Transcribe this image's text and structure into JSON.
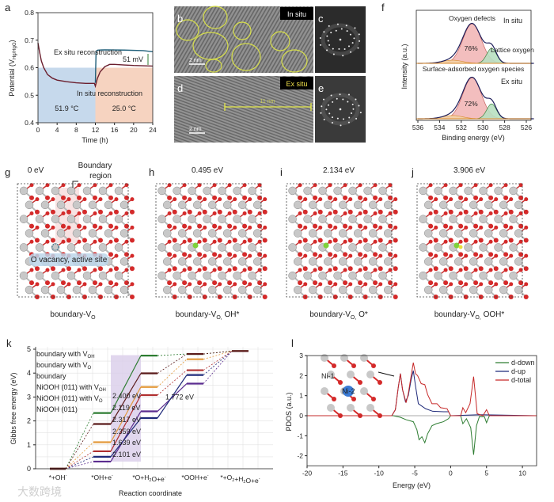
{
  "panel_labels": {
    "a": "a",
    "b": "b",
    "c": "c",
    "d": "d",
    "e": "e",
    "f": "f",
    "g": "g",
    "h": "h",
    "i": "i",
    "j": "j",
    "k": "k",
    "l": "l"
  },
  "tem": {
    "in_situ": "In situ",
    "ex_situ": "Ex situ",
    "scale_b": "2 nm",
    "scale_d": "2 nm",
    "measure_d": "11 nm"
  },
  "structures": [
    {
      "energy": "0 eV",
      "caption_main": "boundary-V",
      "caption_sub": "O",
      "caption_suffix": "",
      "boundary_label_1": "Boundary",
      "boundary_label_2": "region",
      "vacancy_label": "O vacancy, active site"
    },
    {
      "energy": "0.495 eV",
      "caption_main": "boundary-V",
      "caption_sub": "O,",
      "caption_suffix": " OH*"
    },
    {
      "energy": "2.134 eV",
      "caption_main": "boundary-V",
      "caption_sub": "O,",
      "caption_suffix": " O*"
    },
    {
      "energy": "3.906 eV",
      "caption_main": "boundary-V",
      "caption_sub": "O,",
      "caption_suffix": " OOH*"
    }
  ],
  "inset_labels": {
    "ni1": "Ni-1",
    "ni2": "Ni-2"
  },
  "watermark": "大数跨境",
  "chart_data": [
    {
      "id": "a",
      "type": "line",
      "xlabel": "Time (h)",
      "ylabel_main": "Potential (V",
      "ylabel_sub": "Hg/HgO",
      "ylabel_end": ")",
      "xlim": [
        0,
        24
      ],
      "ylim": [
        0.4,
        0.8
      ],
      "xticks": [
        "0",
        "4",
        "8",
        "12",
        "16",
        "20",
        "24"
      ],
      "yticks": [
        "0.4",
        "0.5",
        "0.6",
        "0.7",
        "0.8"
      ],
      "regions": [
        {
          "x": [
            0,
            12
          ],
          "y": [
            0.4,
            0.6
          ],
          "label": "51.9 °C",
          "color": "#c6d9ec"
        },
        {
          "x": [
            12,
            24
          ],
          "y": [
            0.4,
            0.6
          ],
          "label": "25.0 °C",
          "color": "#f6d3c0"
        }
      ],
      "series": [
        {
          "name": "In situ reconstruction",
          "color": "#6b1f2e",
          "x": [
            0,
            0.3,
            0.7,
            1.2,
            2,
            3,
            4,
            6,
            8,
            10,
            11.8,
            12,
            12.4,
            13,
            14,
            15,
            16,
            18,
            20,
            24
          ],
          "y": [
            0.69,
            0.66,
            0.625,
            0.6,
            0.575,
            0.562,
            0.555,
            0.549,
            0.545,
            0.543,
            0.543,
            0.533,
            0.56,
            0.585,
            0.604,
            0.612,
            0.612,
            0.61,
            0.608,
            0.606
          ]
        },
        {
          "name": "Ex situ reconstruction",
          "color": "#1f5f7a",
          "x": [
            12,
            12.15,
            12.5,
            14,
            18,
            22,
            24
          ],
          "y": [
            0.545,
            0.66,
            0.664,
            0.665,
            0.664,
            0.662,
            0.658
          ]
        }
      ],
      "annotation": "51 mV"
    },
    {
      "id": "f",
      "type": "area",
      "xlabel": "Binding energy (eV)",
      "ylabel": "Intensity (a.u.)",
      "xlim": [
        536,
        525
      ],
      "xticks": [
        "536",
        "534",
        "532",
        "530",
        "528",
        "526"
      ],
      "spectra": [
        {
          "name": "In situ",
          "defect_percent": "76%"
        },
        {
          "name": "Ex situ",
          "defect_percent": "72%"
        }
      ],
      "components": [
        {
          "name": "Oxygen defects",
          "center": 531.0,
          "sigma": 0.85,
          "color": "#f2b8b8",
          "line": "#c0504d"
        },
        {
          "name": "Lattice oxygen",
          "center": 529.2,
          "sigma": 0.45,
          "color": "#b9e0c2",
          "line": "#2e7d32"
        },
        {
          "name": "Surface-adsorbed oxygen species",
          "center": 532.8,
          "sigma": 0.9,
          "color": "#f3d2a8",
          "line": "#d98a2b"
        }
      ],
      "amplitudes": [
        [
          1.0,
          0.38,
          0.08
        ],
        [
          1.0,
          0.36,
          0.08
        ]
      ]
    },
    {
      "id": "k",
      "type": "line",
      "xlabel": "Reaction coordinate",
      "ylabel": "Gibbs free energy (eV)",
      "ylim": [
        0,
        5
      ],
      "yticks": [
        "0",
        "1",
        "2",
        "3",
        "4",
        "5"
      ],
      "categories": [
        {
          "main": "*+OH",
          "sup": "-",
          "rest": ""
        },
        {
          "main": "*OH+e",
          "sup": "-",
          "rest": ""
        },
        {
          "main": "*O+H",
          "sub": "2",
          "mid": "O+e",
          "sup": "-"
        },
        {
          "main": "*OOH+e",
          "sup": "-",
          "rest": ""
        },
        {
          "main": "*+O",
          "sub": "2",
          "mid": "+H",
          "sub2": "2",
          "mid2": "O+e",
          "sup": "-"
        }
      ],
      "series": [
        {
          "main": "boundary with V",
          "sub": "OH",
          "color": "#5b2c8f",
          "values": [
            0,
            0.3,
            2.4,
            3.56,
            4.92
          ]
        },
        {
          "main": "boundary with V",
          "sub": "O",
          "color": "#1f2a7a",
          "values": [
            0,
            0.5,
            2.12,
            3.92,
            4.92
          ]
        },
        {
          "main": "boundary",
          "sub": "",
          "color": "#2e7d32",
          "values": [
            0,
            2.33,
            4.73,
            4.8,
            4.92
          ]
        },
        {
          "main": "NiOOH (011) with V",
          "sub": "OH",
          "color": "#e39a3c",
          "values": [
            0,
            1.11,
            3.42,
            4.58,
            4.92
          ]
        },
        {
          "main": "NiOOH (011) with V",
          "sub": "O",
          "color": "#b03030",
          "values": [
            0,
            0.73,
            3.08,
            4.12,
            4.92
          ]
        },
        {
          "main": "NiOOH (011)",
          "sub": "",
          "color": "#5a1a1a",
          "values": [
            0,
            1.87,
            3.99,
            4.8,
            4.92
          ]
        }
      ],
      "barriers": [
        "2.400 eV",
        "2.119 eV",
        "2.317 eV",
        "2.359 eV",
        "1.639 eV",
        "2.101 eV"
      ],
      "barrier_colors": [
        "#2e7d32",
        "#5a1a1a",
        "#e39a3c",
        "#b03030",
        "#1f2a7a",
        "#5b2c8f"
      ],
      "ooh_barrier": "1.772 eV"
    },
    {
      "id": "l",
      "type": "line",
      "xlabel": "Energy (eV)",
      "ylabel": "PDOS (a.u.)",
      "xlim": [
        -20,
        12
      ],
      "ylim": [
        -2.5,
        3
      ],
      "xticks": [
        "-20",
        "-15",
        "-10",
        "-5",
        "0",
        "5",
        "10"
      ],
      "yticks": [
        "-2",
        "-1",
        "0",
        "1",
        "2",
        "3"
      ],
      "series": [
        {
          "name": "d-down",
          "color": "#2e7d32",
          "x": [
            -20,
            -8,
            -7,
            -6.2,
            -5.2,
            -4.7,
            -4.4,
            -4.0,
            -3.6,
            -3.2,
            -2.6,
            -2,
            -1,
            -0.3,
            0,
            1.4,
            1.7,
            2.2,
            2.8,
            3.2,
            3.6,
            4.0,
            4.7,
            5.0,
            5.4,
            12
          ],
          "y": [
            0,
            0,
            -0.08,
            -0.2,
            -0.3,
            -0.7,
            -1.2,
            -1.05,
            -1.35,
            -0.9,
            -0.5,
            -0.4,
            -0.3,
            -0.15,
            0,
            0,
            -0.4,
            -0.15,
            -0.6,
            -1.95,
            -0.5,
            -0.05,
            -0.05,
            -0.35,
            0,
            0
          ]
        },
        {
          "name": "d-up",
          "color": "#1f2a7a",
          "x": [
            -20,
            -8.2,
            -7.7,
            -7.3,
            -7,
            -6.7,
            -6.3,
            -5.9,
            -5.5,
            -5.2,
            -4.9,
            -4.5,
            -3.5,
            -2.5,
            -1,
            -0.3,
            0,
            4,
            12
          ],
          "y": [
            0,
            0,
            0.3,
            1.4,
            2.1,
            1.3,
            0.7,
            1.0,
            1.8,
            2.25,
            1.5,
            0.6,
            0.35,
            0.22,
            0.2,
            0.2,
            0,
            0.05,
            0
          ]
        },
        {
          "name": "d-total",
          "color": "#c62828",
          "x": [
            -20,
            -8.2,
            -7.7,
            -7.3,
            -7,
            -6.7,
            -6.2,
            -5.9,
            -5.5,
            -5.2,
            -4.9,
            -4.6,
            -4.1,
            -3.6,
            -3.2,
            -2.6,
            -1.9,
            -1.4,
            -0.5,
            0,
            1.4,
            1.7,
            2.1,
            2.7,
            3.2,
            3.7,
            4.5,
            5.0,
            5.4,
            12
          ],
          "y": [
            0,
            0,
            0.3,
            1.4,
            2.1,
            1.3,
            0.65,
            1.1,
            2.0,
            2.65,
            2.1,
            2.0,
            1.6,
            1.55,
            1.05,
            0.6,
            0.6,
            0.4,
            0.35,
            0,
            0,
            0.4,
            0.15,
            0.6,
            1.95,
            0.1,
            0,
            0.3,
            0,
            0
          ]
        }
      ]
    }
  ]
}
